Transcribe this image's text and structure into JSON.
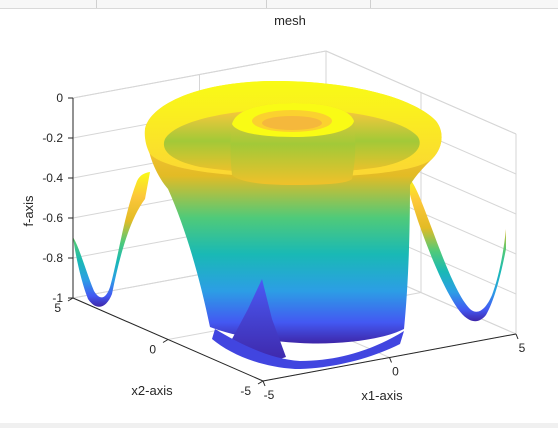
{
  "window": {
    "toolbar_separators": 3
  },
  "colors": {
    "figure_background": "#ffffff",
    "axis_line": "#262626",
    "grid_line": "#d6d6d6",
    "colormap": [
      "#3e26a8",
      "#4358f2",
      "#2c9ee5",
      "#19b9b5",
      "#50ca79",
      "#a2c938",
      "#e3bb25",
      "#fcc73b",
      "#f9fb15"
    ]
  },
  "chart_data": {
    "type": "surface",
    "subtype": "mesh",
    "title": "mesh",
    "xlabel": "x1-axis",
    "ylabel": "x2-axis",
    "zlabel": "f-axis",
    "xlim": [
      -5,
      5
    ],
    "ylim": [
      -5,
      5
    ],
    "zlim": [
      -1,
      0
    ],
    "x_ticks": [
      -5,
      0,
      5
    ],
    "x_tick_labels": [
      "-5",
      "0",
      "5"
    ],
    "y_ticks": [
      -5,
      0,
      5
    ],
    "y_tick_labels": [
      "-5",
      "0",
      "5"
    ],
    "z_ticks": [
      -1,
      -0.8,
      -0.6,
      -0.4,
      -0.2,
      0
    ],
    "z_tick_labels": [
      "-1",
      "-0.8",
      "-0.6",
      "-0.4",
      "-0.2",
      "0"
    ],
    "grid": true,
    "box": true,
    "colormap": "parula",
    "view": "default 3-D (azimuth -37.5°, elevation 30°)"
  }
}
